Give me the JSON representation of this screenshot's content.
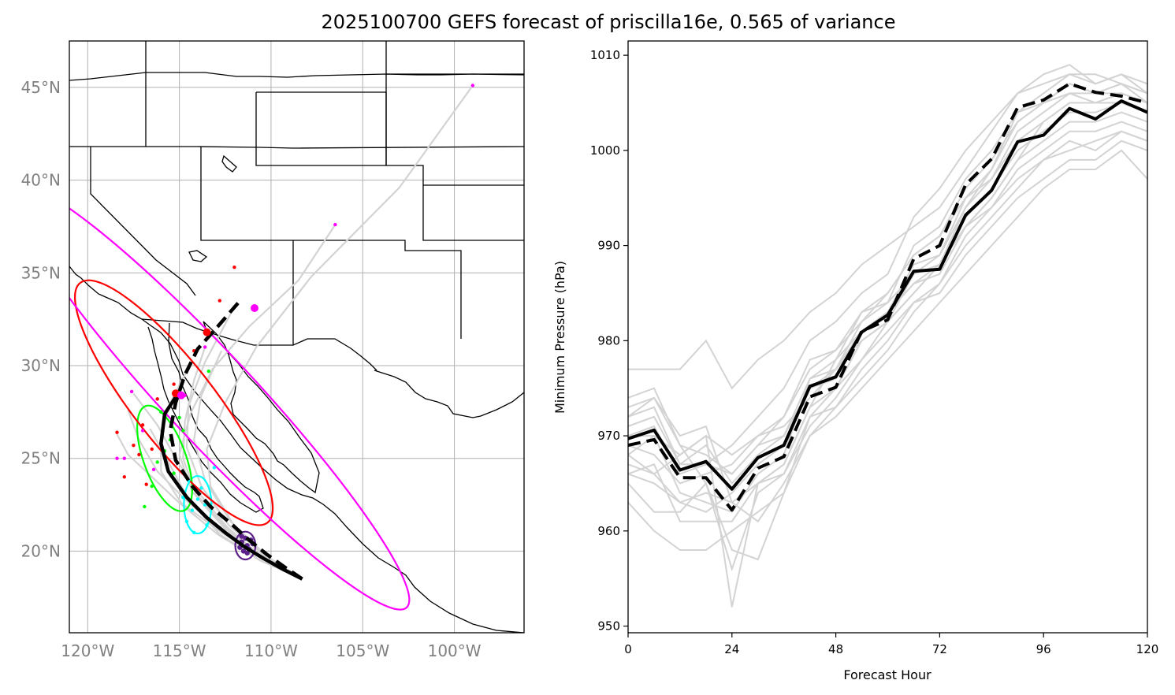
{
  "figure": {
    "title": "2025100700 GEFS forecast of priscilla16e, 0.565 of variance"
  },
  "chart_data": [
    {
      "type": "map",
      "lon_range": [
        -121.0,
        -96.2
      ],
      "lat_range": [
        15.6,
        47.5
      ],
      "lon_ticks": [
        -120,
        -115,
        -110,
        -105,
        -100
      ],
      "lat_ticks": [
        20,
        25,
        30,
        35,
        40,
        45
      ],
      "lon_tick_labels": [
        "120°W",
        "115°W",
        "110°W",
        "105°W",
        "100°W"
      ],
      "lat_tick_labels": [
        "20°N",
        "25°N",
        "30°N",
        "35°N",
        "40°N",
        "45°N"
      ],
      "grid": true,
      "colors": {
        "ensemble": "#d3d3d3",
        "mean_track": "#000000",
        "hour_24": "#5b1f8a",
        "hour_48": "#00ffff",
        "hour_72": "#00ff00",
        "hour_96": "#ff0000",
        "hour_120": "#ff00ff"
      },
      "mean_track_solid": [
        [
          -108.3,
          18.5
        ],
        [
          -109.3,
          19.0
        ],
        [
          -110.4,
          19.6
        ],
        [
          -111.4,
          20.2
        ],
        [
          -112.5,
          21.0
        ],
        [
          -113.5,
          21.8
        ],
        [
          -114.6,
          22.9
        ],
        [
          -115.6,
          24.3
        ],
        [
          -116.0,
          25.8
        ],
        [
          -115.8,
          27.4
        ],
        [
          -115.0,
          28.6
        ]
      ],
      "mean_track_dashed": [
        [
          -108.3,
          18.5
        ],
        [
          -109.2,
          19.1
        ],
        [
          -110.2,
          19.8
        ],
        [
          -111.2,
          20.6
        ],
        [
          -112.2,
          21.5
        ],
        [
          -113.3,
          22.4
        ],
        [
          -114.3,
          23.5
        ],
        [
          -115.2,
          24.9
        ],
        [
          -115.5,
          26.5
        ],
        [
          -115.2,
          28.0
        ],
        [
          -114.7,
          29.5
        ],
        [
          -114.0,
          30.9
        ],
        [
          -113.0,
          32.0
        ],
        [
          -111.6,
          33.6
        ]
      ],
      "ensemble_tracks": [
        [
          [
            -108.3,
            18.5
          ],
          [
            -110.5,
            19.6
          ],
          [
            -112.6,
            21.0
          ],
          [
            -114.7,
            22.8
          ],
          [
            -116.2,
            24.3
          ],
          [
            -117.2,
            26.0
          ],
          [
            -117.8,
            27.6
          ]
        ],
        [
          [
            -108.3,
            18.5
          ],
          [
            -110.3,
            19.6
          ],
          [
            -112.5,
            21.2
          ],
          [
            -114.3,
            23.2
          ],
          [
            -115.0,
            25.2
          ],
          [
            -114.4,
            27.4
          ],
          [
            -113.2,
            29.8
          ],
          [
            -111.2,
            32.1
          ],
          [
            -108.5,
            34.6
          ],
          [
            -106.5,
            37.6
          ]
        ],
        [
          [
            -108.3,
            18.5
          ],
          [
            -110.2,
            19.7
          ],
          [
            -112.1,
            21.5
          ],
          [
            -113.3,
            23.5
          ],
          [
            -113.5,
            25.5
          ],
          [
            -112.5,
            28.0
          ],
          [
            -110.8,
            31.0
          ],
          [
            -107.8,
            34.8
          ],
          [
            -103.0,
            39.6
          ],
          [
            -99.0,
            45.1
          ]
        ],
        [
          [
            -108.3,
            18.5
          ],
          [
            -110.4,
            19.6
          ],
          [
            -112.4,
            21.3
          ],
          [
            -114.0,
            23.2
          ],
          [
            -115.2,
            25.0
          ],
          [
            -116.2,
            26.8
          ],
          [
            -117.5,
            28.5
          ]
        ],
        [
          [
            -108.3,
            18.5
          ],
          [
            -110.6,
            19.5
          ],
          [
            -112.9,
            20.9
          ],
          [
            -115.0,
            22.6
          ],
          [
            -116.5,
            24.0
          ],
          [
            -117.8,
            25.2
          ],
          [
            -118.4,
            26.3
          ]
        ],
        [
          [
            -108.3,
            18.5
          ],
          [
            -110.3,
            19.7
          ],
          [
            -112.3,
            21.4
          ],
          [
            -113.8,
            23.5
          ],
          [
            -114.6,
            25.6
          ],
          [
            -114.5,
            27.8
          ],
          [
            -113.6,
            30.2
          ],
          [
            -112.2,
            32.8
          ]
        ],
        [
          [
            -108.3,
            18.5
          ],
          [
            -110.5,
            19.6
          ],
          [
            -112.7,
            21.0
          ],
          [
            -114.9,
            22.6
          ],
          [
            -116.0,
            24.3
          ],
          [
            -116.0,
            26.2
          ],
          [
            -115.5,
            28.0
          ],
          [
            -114.6,
            29.7
          ]
        ],
        [
          [
            -108.3,
            18.5
          ],
          [
            -110.4,
            19.6
          ],
          [
            -112.4,
            21.2
          ],
          [
            -114.1,
            23.1
          ],
          [
            -114.8,
            25.0
          ],
          [
            -114.7,
            27.0
          ],
          [
            -114.2,
            29.2
          ],
          [
            -113.6,
            31.0
          ]
        ],
        [
          [
            -108.3,
            18.5
          ],
          [
            -110.6,
            19.5
          ],
          [
            -112.8,
            20.9
          ],
          [
            -114.5,
            22.8
          ],
          [
            -115.6,
            24.8
          ],
          [
            -116.6,
            26.6
          ]
        ],
        [
          [
            -108.3,
            18.5
          ],
          [
            -110.3,
            19.7
          ],
          [
            -112.2,
            21.6
          ],
          [
            -113.6,
            23.8
          ],
          [
            -114.2,
            26.0
          ],
          [
            -113.8,
            28.4
          ],
          [
            -112.7,
            30.8
          ]
        ]
      ],
      "hour_points": {
        "hour_24": [
          [
            -111.3,
            20.3
          ],
          [
            -111.6,
            20.5
          ],
          [
            -111.2,
            20.1
          ],
          [
            -111.4,
            20.7
          ],
          [
            -111.0,
            20.4
          ],
          [
            -111.7,
            20.2
          ],
          [
            -111.5,
            20.0
          ],
          [
            -111.1,
            20.6
          ],
          [
            -111.3,
            19.9
          ],
          [
            -111.6,
            20.8
          ]
        ],
        "hour_48": [
          [
            -114.0,
            22.8
          ],
          [
            -114.3,
            22.2
          ],
          [
            -113.8,
            23.4
          ],
          [
            -114.6,
            21.6
          ],
          [
            -113.6,
            22.5
          ],
          [
            -114.5,
            23.8
          ],
          [
            -113.5,
            21.4
          ],
          [
            -114.8,
            22.9
          ],
          [
            -113.1,
            24.5
          ],
          [
            -114.2,
            21.0
          ]
        ],
        "hour_72": [
          [
            -115.5,
            26.0
          ],
          [
            -116.2,
            24.8
          ],
          [
            -115.0,
            27.2
          ],
          [
            -116.5,
            23.5
          ],
          [
            -115.8,
            25.4
          ],
          [
            -114.8,
            26.5
          ],
          [
            -116.9,
            22.4
          ],
          [
            -113.4,
            29.7
          ],
          [
            -115.3,
            24.2
          ],
          [
            -116.0,
            27.5
          ]
        ],
        "hour_96": [
          [
            -117.0,
            26.8
          ],
          [
            -118.0,
            24.0
          ],
          [
            -116.5,
            25.5
          ],
          [
            -117.5,
            25.7
          ],
          [
            -116.2,
            28.2
          ],
          [
            -115.3,
            29.0
          ],
          [
            -114.2,
            30.8
          ],
          [
            -112.8,
            33.5
          ],
          [
            -112.0,
            35.3
          ],
          [
            -117.2,
            25.2
          ],
          [
            -116.8,
            23.6
          ],
          [
            -118.4,
            26.4
          ]
        ],
        "hour_120": [
          [
            -118.0,
            25.0
          ],
          [
            -117.6,
            28.6
          ],
          [
            -117.0,
            26.5
          ],
          [
            -113.6,
            31.0
          ],
          [
            -116.4,
            24.4
          ],
          [
            -114.7,
            28.4
          ],
          [
            -118.4,
            25.0
          ],
          [
            -99.0,
            45.1
          ],
          [
            -106.5,
            37.6
          ],
          [
            -110.9,
            33.1
          ]
        ]
      },
      "hour_means": {
        "hour_96": [
          -113.5,
          31.8
        ],
        "hour_96_alt": [
          -115.2,
          28.5
        ],
        "hour_120": [
          -110.9,
          33.1
        ],
        "hour_120_alt": [
          -114.9,
          28.4
        ]
      },
      "ellipses": [
        {
          "hour": "hour_24",
          "center": [
            -111.4,
            20.3
          ],
          "semi_lon": 0.55,
          "semi_lat": 0.75,
          "angle_deg": 0
        },
        {
          "hour": "hour_48",
          "center": [
            -114.0,
            22.5
          ],
          "semi_lon": 0.75,
          "semi_lat": 1.55,
          "angle_deg": 0
        },
        {
          "hour": "hour_72",
          "center": [
            -115.8,
            25.0
          ],
          "semi_lon": 1.15,
          "semi_lat": 3.0,
          "angle_deg": -20
        },
        {
          "hour": "hour_96",
          "center": [
            -115.3,
            28.0
          ],
          "semi_lon": 2.2,
          "semi_lat": 8.2,
          "angle_deg": -38
        },
        {
          "hour": "hour_120",
          "center": [
            -113.3,
            28.3
          ],
          "semi_lon": 2.4,
          "semi_lat": 15.5,
          "angle_deg": -43
        }
      ]
    },
    {
      "type": "line",
      "xlabel": "Forecast Hour",
      "ylabel": "Minimum Pressure (hPa)",
      "xlim": [
        0,
        120
      ],
      "ylim": [
        949.3,
        1011.5
      ],
      "xticks": [
        0,
        24,
        48,
        72,
        96,
        120
      ],
      "yticks": [
        950,
        960,
        970,
        980,
        990,
        1000,
        1010
      ],
      "x": [
        0,
        6,
        12,
        18,
        24,
        30,
        36,
        42,
        48,
        54,
        60,
        66,
        72,
        78,
        84,
        90,
        96,
        102,
        108,
        114,
        120
      ],
      "mean_solid": [
        969.7,
        970.6,
        966.4,
        967.3,
        964.4,
        967.7,
        969.0,
        975.2,
        976.2,
        980.9,
        982.7,
        987.3,
        987.5,
        993.2,
        995.8,
        1000.9,
        1001.6,
        1004.4,
        1003.3,
        1005.2,
        1004.0
      ],
      "mean_dashed": [
        969.0,
        969.6,
        965.6,
        965.6,
        962.2,
        966.6,
        967.8,
        974.1,
        975.1,
        981.0,
        982.2,
        988.6,
        990.0,
        996.4,
        999.1,
        1004.5,
        1005.3,
        1007.0,
        1006.1,
        1005.7,
        1005.0
      ],
      "members": [
        [
          967.0,
          966.0,
          968.0,
          970.0,
          952.0,
          965.0,
          967.0,
          973.0,
          978.0,
          983.0,
          984.0,
          987.0,
          988.0,
          994.0,
          998.0,
          1004.0,
          1006.0,
          1008.0,
          1007.0,
          1008.0,
          1006.0
        ],
        [
          974.0,
          975.0,
          969.0,
          965.0,
          956.0,
          964.0,
          966.0,
          972.0,
          975.0,
          978.0,
          982.0,
          985.0,
          988.0,
          992.0,
          995.0,
          999.0,
          1003.0,
          1005.0,
          1005.0,
          1006.0,
          1005.0
        ],
        [
          977.0,
          977.0,
          977.0,
          980.0,
          975.0,
          978.0,
          980.0,
          983.0,
          985.0,
          988.0,
          990.0,
          992.0,
          994.0,
          998.0,
          1002.0,
          1006.0,
          1008.0,
          1009.0,
          1007.0,
          1008.0,
          1007.0
        ],
        [
          963.0,
          960.0,
          958.0,
          958.0,
          960.0,
          962.0,
          964.0,
          970.0,
          972.0,
          975.0,
          978.0,
          981.0,
          984.0,
          987.0,
          990.0,
          993.0,
          996.0,
          998.0,
          998.0,
          1000.0,
          997.0
        ],
        [
          965.0,
          962.0,
          962.0,
          965.0,
          958.0,
          957.0,
          964.0,
          972.0,
          973.0,
          976.0,
          979.0,
          983.0,
          986.0,
          990.0,
          993.0,
          996.0,
          999.0,
          1001.0,
          1000.0,
          1002.0,
          1001.0
        ],
        [
          972.0,
          974.0,
          969.0,
          968.0,
          966.0,
          969.0,
          972.0,
          978.0,
          979.0,
          983.0,
          985.0,
          989.0,
          991.0,
          995.0,
          997.0,
          1001.0,
          1003.0,
          1005.0,
          1005.0,
          1006.0,
          1005.0
        ],
        [
          968.0,
          970.0,
          964.0,
          963.0,
          962.0,
          966.0,
          968.0,
          976.0,
          977.0,
          981.0,
          983.0,
          988.0,
          989.0,
          994.0,
          997.0,
          1002.0,
          1004.0,
          1006.0,
          1005.0,
          1005.0,
          1004.0
        ],
        [
          970.0,
          971.0,
          966.0,
          967.0,
          969.0,
          972.0,
          975.0,
          980.0,
          982.0,
          985.0,
          987.0,
          993.0,
          996.0,
          1000.0,
          1003.0,
          1006.0,
          1007.0,
          1008.0,
          1008.0,
          1007.0,
          1006.0
        ],
        [
          966.0,
          965.0,
          963.0,
          964.0,
          963.0,
          965.0,
          966.0,
          971.0,
          974.0,
          978.0,
          981.0,
          984.0,
          986.0,
          991.0,
          994.0,
          998.0,
          1000.0,
          1002.0,
          1002.0,
          1003.0,
          1002.0
        ],
        [
          971.0,
          972.0,
          967.0,
          969.0,
          965.0,
          968.0,
          970.0,
          975.0,
          976.0,
          981.0,
          983.0,
          986.0,
          987.0,
          992.0,
          995.0,
          999.0,
          1001.0,
          1003.0,
          1003.0,
          1004.0,
          1003.0
        ],
        [
          969.0,
          968.0,
          965.0,
          966.0,
          967.0,
          970.0,
          972.0,
          977.0,
          979.0,
          982.0,
          984.0,
          990.0,
          992.0,
          997.0,
          1000.0,
          1004.0,
          1005.0,
          1007.0,
          1006.0,
          1007.0,
          1006.0
        ],
        [
          973.0,
          974.0,
          970.0,
          971.0,
          963.0,
          961.0,
          965.0,
          970.0,
          973.0,
          977.0,
          980.0,
          984.0,
          985.0,
          989.0,
          992.0,
          995.0,
          997.0,
          999.0,
          999.0,
          1001.0,
          1000.0
        ],
        [
          966.0,
          967.0,
          961.0,
          961.0,
          961.0,
          965.0,
          967.0,
          973.0,
          975.0,
          980.0,
          982.0,
          987.0,
          989.0,
          995.0,
          998.0,
          1003.0,
          1005.0,
          1007.0,
          1006.0,
          1006.0,
          1005.0
        ],
        [
          970.0,
          970.0,
          968.0,
          970.0,
          968.0,
          970.0,
          971.0,
          974.0,
          977.0,
          980.0,
          982.0,
          985.0,
          988.0,
          993.0,
          996.0,
          1000.0,
          1002.0,
          1004.0,
          1004.0,
          1005.0,
          1004.0
        ],
        [
          968.0,
          966.0,
          963.0,
          962.0,
          964.0,
          967.0,
          969.0,
          975.0,
          977.0,
          982.0,
          985.0,
          989.0,
          991.0,
          996.0,
          999.0,
          1003.0,
          1005.0,
          1006.0,
          1006.0,
          1007.0,
          1005.0
        ],
        [
          972.0,
          973.0,
          967.0,
          967.0,
          966.0,
          969.0,
          970.0,
          976.0,
          978.0,
          981.0,
          983.0,
          986.0,
          988.0,
          992.0,
          994.0,
          997.0,
          999.0,
          1000.0,
          1001.0,
          1002.0,
          1001.0
        ]
      ]
    }
  ]
}
